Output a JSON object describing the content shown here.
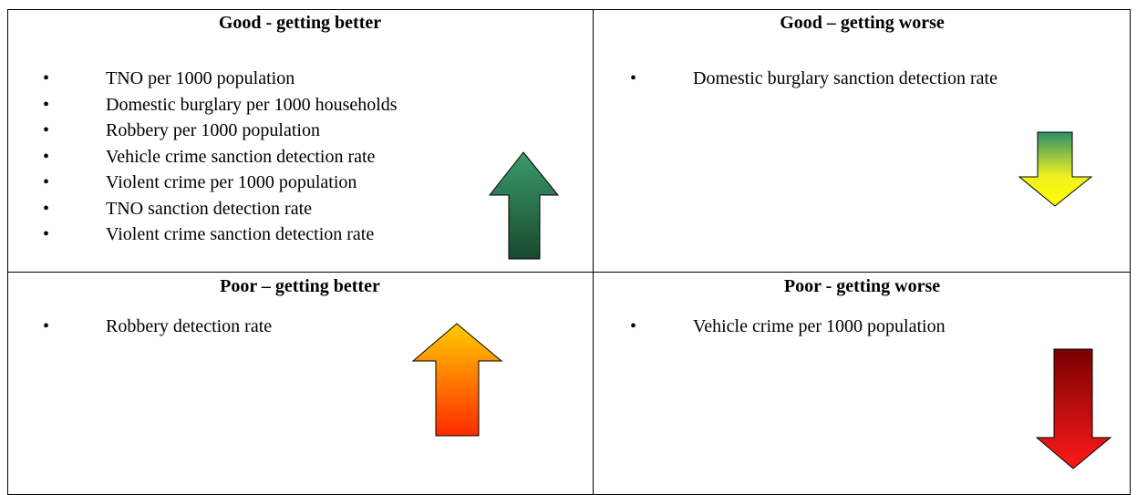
{
  "cells": [
    {
      "heading": "Good - getting better",
      "items": [
        "TNO per 1000 population",
        "Domestic burglary per 1000 households",
        "Robbery per 1000 population",
        "Vehicle crime sanction detection rate",
        "Violent crime per 1000 population",
        "TNO sanction detection rate",
        "Violent crime sanction detection rate"
      ]
    },
    {
      "heading": "Good – getting worse",
      "items": [
        "Domestic burglary sanction detection rate"
      ]
    },
    {
      "heading": "Poor – getting better",
      "items": [
        "Robbery detection rate"
      ]
    },
    {
      "heading": "Poor - getting worse",
      "items": [
        "Vehicle crime per 1000 population"
      ]
    }
  ]
}
